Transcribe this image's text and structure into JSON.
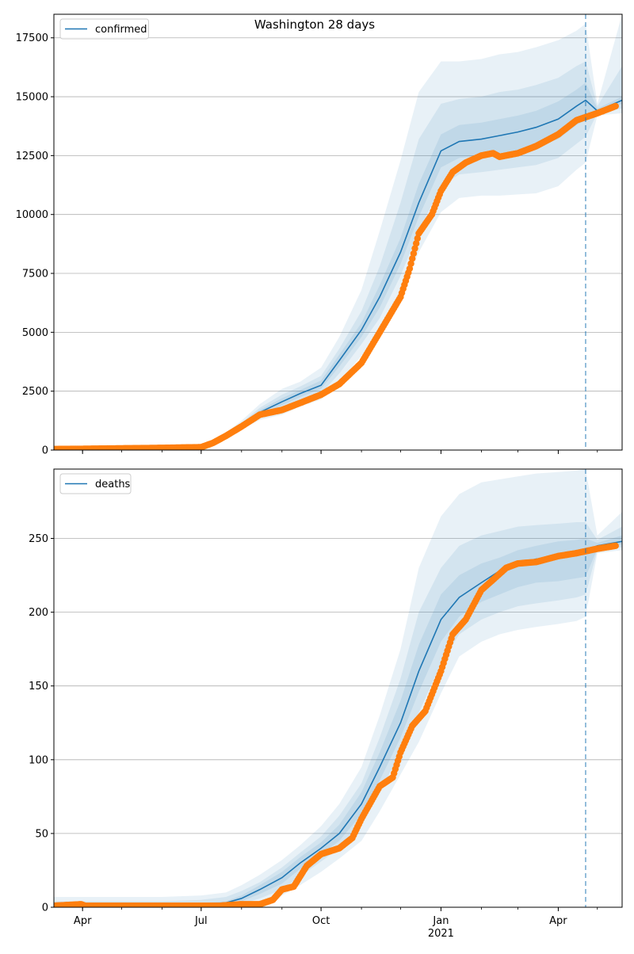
{
  "suptitle": "Washington 28 days",
  "colors": {
    "model_line": "#1f77b4",
    "observed_points": "#ff7f0e",
    "band": "#1f77b4",
    "grid": "#b0b0b0",
    "forecast_line": "#1f77b4"
  },
  "chart_data": [
    {
      "type": "line",
      "legend": [
        "confirmed"
      ],
      "legend_position": "upper-left",
      "grid": "y",
      "xlim": [
        "2020-03-10",
        "2021-05-20"
      ],
      "ylim": [
        0,
        18500
      ],
      "yticks": [
        0,
        2500,
        5000,
        7500,
        10000,
        12500,
        15000,
        17500
      ],
      "xticks": [
        {
          "date": "2020-04-01",
          "label": "Apr",
          "sublabel": ""
        },
        {
          "date": "2020-07-01",
          "label": "Jul",
          "sublabel": ""
        },
        {
          "date": "2020-10-01",
          "label": "Oct",
          "sublabel": ""
        },
        {
          "date": "2021-01-01",
          "label": "Jan",
          "sublabel": "2021"
        },
        {
          "date": "2021-04-01",
          "label": "Apr",
          "sublabel": ""
        }
      ],
      "forecast_start": "2021-04-22",
      "model_x": [
        "2020-03-10",
        "2020-04-01",
        "2020-05-01",
        "2020-06-01",
        "2020-07-01",
        "2020-07-15",
        "2020-08-01",
        "2020-08-15",
        "2020-09-01",
        "2020-09-15",
        "2020-10-01",
        "2020-10-15",
        "2020-11-01",
        "2020-11-15",
        "2020-12-01",
        "2020-12-15",
        "2021-01-01",
        "2021-01-15",
        "2021-02-01",
        "2021-02-15",
        "2021-03-01",
        "2021-03-15",
        "2021-04-01",
        "2021-04-15",
        "2021-04-22",
        "2021-05-01",
        "2021-05-20"
      ],
      "model_y": [
        40,
        50,
        70,
        90,
        120,
        400,
        1050,
        1600,
        2050,
        2400,
        2750,
        3800,
        5100,
        6500,
        8400,
        10500,
        12700,
        13100,
        13200,
        13350,
        13500,
        13700,
        14050,
        14600,
        14850,
        14400,
        14850
      ],
      "bands": [
        {
          "lower": [
            0,
            0,
            0,
            10,
            50,
            280,
            880,
            1280,
            1500,
            1850,
            2150,
            2900,
            4000,
            5000,
            6500,
            8400,
            10100,
            10700,
            10800,
            10800,
            10850,
            10900,
            11200,
            11900,
            12200,
            14200,
            14300
          ],
          "upper": [
            150,
            150,
            180,
            200,
            250,
            520,
            1250,
            1950,
            2600,
            2900,
            3500,
            4800,
            6800,
            9300,
            12300,
            15200,
            16500,
            16500,
            16600,
            16800,
            16900,
            17100,
            17400,
            17800,
            18100,
            14700,
            18500
          ]
        },
        {
          "lower": [
            10,
            15,
            30,
            50,
            80,
            330,
            950,
            1400,
            1750,
            2050,
            2400,
            3250,
            4500,
            5600,
            7400,
            9300,
            11200,
            11700,
            11800,
            11900,
            12000,
            12100,
            12400,
            13000,
            13300,
            14300,
            14500
          ],
          "upper": [
            100,
            110,
            130,
            150,
            180,
            470,
            1150,
            1800,
            2350,
            2700,
            3150,
            4300,
            5900,
            7800,
            10500,
            13200,
            14700,
            14900,
            15000,
            15200,
            15300,
            15500,
            15800,
            16300,
            16500,
            14600,
            16300
          ]
        },
        {
          "lower": [
            25,
            30,
            50,
            70,
            100,
            370,
            1000,
            1500,
            1900,
            2250,
            2600,
            3550,
            4800,
            6050,
            7900,
            9900,
            12000,
            12400,
            12500,
            12600,
            12700,
            12900,
            13200,
            13800,
            14000,
            14350,
            14700
          ],
          "upper": [
            60,
            70,
            90,
            110,
            140,
            430,
            1100,
            1700,
            2200,
            2550,
            2950,
            4050,
            5400,
            7000,
            9000,
            11300,
            13400,
            13800,
            13900,
            14050,
            14200,
            14400,
            14800,
            15300,
            15600,
            14500,
            15000
          ]
        }
      ],
      "observed_x": [
        "2020-03-10",
        "2020-04-01",
        "2020-05-01",
        "2020-06-01",
        "2020-07-01",
        "2020-07-10",
        "2020-07-20",
        "2020-08-01",
        "2020-08-15",
        "2020-09-01",
        "2020-09-15",
        "2020-10-01",
        "2020-10-15",
        "2020-11-01",
        "2020-11-15",
        "2020-12-01",
        "2020-12-08",
        "2020-12-15",
        "2020-12-25",
        "2021-01-01",
        "2021-01-10",
        "2021-01-20",
        "2021-02-01",
        "2021-02-10",
        "2021-02-15",
        "2021-03-01",
        "2021-03-15",
        "2021-04-01",
        "2021-04-15",
        "2021-05-01",
        "2021-05-15"
      ],
      "observed_y": [
        40,
        50,
        70,
        90,
        120,
        300,
        600,
        1000,
        1500,
        1700,
        2000,
        2350,
        2800,
        3700,
        5000,
        6500,
        7700,
        9200,
        10000,
        11000,
        11800,
        12200,
        12500,
        12600,
        12450,
        12600,
        12900,
        13400,
        14000,
        14300,
        14600
      ]
    },
    {
      "type": "line",
      "legend": [
        "deaths"
      ],
      "legend_position": "upper-left",
      "grid": "y",
      "xlim": [
        "2020-03-10",
        "2021-05-20"
      ],
      "ylim": [
        0,
        297
      ],
      "yticks": [
        0,
        50,
        100,
        150,
        200,
        250
      ],
      "xticks": [
        {
          "date": "2020-04-01",
          "label": "Apr",
          "sublabel": ""
        },
        {
          "date": "2020-07-01",
          "label": "Jul",
          "sublabel": ""
        },
        {
          "date": "2020-10-01",
          "label": "Oct",
          "sublabel": ""
        },
        {
          "date": "2021-01-01",
          "label": "Jan",
          "sublabel": "2021"
        },
        {
          "date": "2021-04-01",
          "label": "Apr",
          "sublabel": ""
        }
      ],
      "forecast_start": "2021-04-22",
      "model_x": [
        "2020-03-10",
        "2020-04-01",
        "2020-05-01",
        "2020-06-01",
        "2020-07-01",
        "2020-07-20",
        "2020-08-01",
        "2020-08-15",
        "2020-09-01",
        "2020-09-15",
        "2020-10-01",
        "2020-10-15",
        "2020-11-01",
        "2020-11-15",
        "2020-12-01",
        "2020-12-15",
        "2021-01-01",
        "2021-01-15",
        "2021-02-01",
        "2021-02-15",
        "2021-03-01",
        "2021-03-15",
        "2021-04-01",
        "2021-04-15",
        "2021-04-22",
        "2021-05-01",
        "2021-05-20"
      ],
      "model_y": [
        1,
        1,
        1,
        1,
        2,
        3,
        6,
        12,
        20,
        30,
        40,
        50,
        70,
        95,
        125,
        160,
        195,
        210,
        220,
        228,
        233,
        236,
        238,
        240,
        242,
        245,
        248
      ],
      "bands": [
        {
          "lower": [
            0,
            0,
            0,
            0,
            0,
            0,
            0,
            3,
            8,
            15,
            24,
            33,
            45,
            65,
            90,
            112,
            145,
            170,
            180,
            185,
            188,
            190,
            192,
            194,
            197,
            240,
            242
          ],
          "upper": [
            7,
            7,
            7,
            7,
            8,
            10,
            15,
            22,
            32,
            42,
            55,
            70,
            95,
            130,
            175,
            230,
            265,
            280,
            288,
            290,
            292,
            294,
            295,
            296,
            297,
            252,
            268
          ]
        },
        {
          "lower": [
            0,
            0,
            0,
            0,
            0,
            1,
            2,
            6,
            12,
            21,
            31,
            40,
            56,
            78,
            105,
            132,
            165,
            185,
            195,
            200,
            204,
            206,
            208,
            210,
            212,
            242,
            244
          ],
          "upper": [
            4,
            4,
            4,
            4,
            5,
            7,
            11,
            17,
            27,
            37,
            48,
            62,
            84,
            115,
            155,
            200,
            230,
            245,
            252,
            255,
            258,
            259,
            260,
            261,
            261,
            249,
            258
          ]
        },
        {
          "lower": [
            0,
            0,
            0,
            0,
            1,
            2,
            4,
            9,
            16,
            26,
            36,
            45,
            63,
            86,
            115,
            146,
            180,
            197,
            207,
            212,
            217,
            220,
            221,
            223,
            224,
            243,
            246
          ],
          "upper": [
            2,
            2,
            2,
            2,
            3,
            4,
            8,
            15,
            24,
            34,
            44,
            56,
            78,
            105,
            140,
            178,
            212,
            225,
            233,
            237,
            242,
            245,
            248,
            249,
            250,
            247,
            252
          ]
        }
      ],
      "observed_x": [
        "2020-03-10",
        "2020-03-31",
        "2020-04-03",
        "2020-04-10",
        "2020-05-15",
        "2020-06-15",
        "2020-07-15",
        "2020-08-01",
        "2020-08-15",
        "2020-08-25",
        "2020-09-01",
        "2020-09-10",
        "2020-09-20",
        "2020-10-01",
        "2020-10-15",
        "2020-10-25",
        "2020-11-01",
        "2020-11-15",
        "2020-11-25",
        "2020-12-01",
        "2020-12-10",
        "2020-12-20",
        "2021-01-01",
        "2021-01-10",
        "2021-01-20",
        "2021-02-01",
        "2021-02-10",
        "2021-02-20",
        "2021-03-01",
        "2021-03-15",
        "2021-04-01",
        "2021-04-15",
        "2021-05-01",
        "2021-05-15"
      ],
      "observed_y": [
        1,
        2,
        1,
        1,
        1,
        1,
        1,
        2,
        2,
        5,
        12,
        14,
        28,
        36,
        40,
        47,
        60,
        82,
        88,
        105,
        123,
        133,
        160,
        185,
        195,
        215,
        222,
        230,
        233,
        234,
        238,
        240,
        243,
        245
      ]
    }
  ]
}
